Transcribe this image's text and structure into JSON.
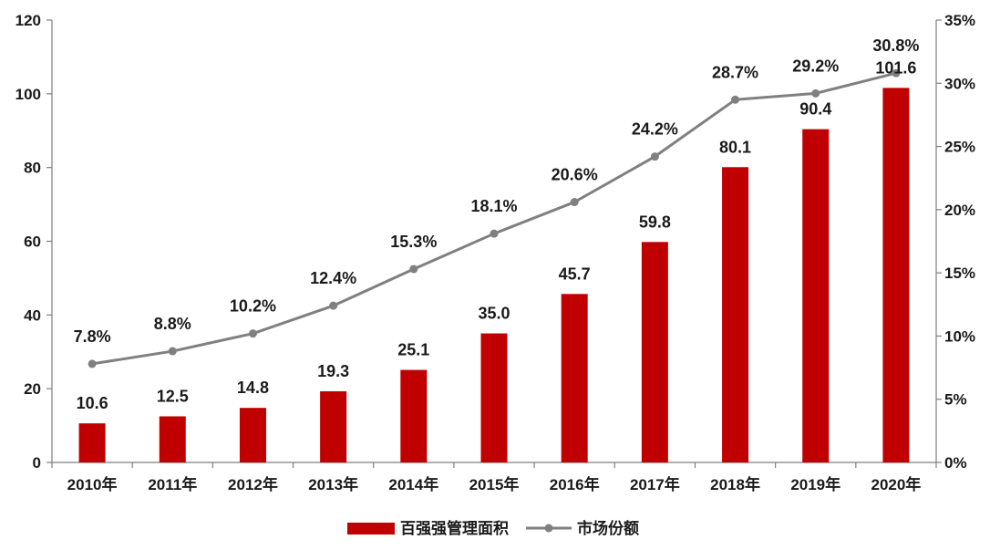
{
  "chart_data": {
    "type": "bar+line",
    "categories": [
      "2010年",
      "2011年",
      "2012年",
      "2013年",
      "2014年",
      "2015年",
      "2016年",
      "2017年",
      "2018年",
      "2019年",
      "2020年"
    ],
    "series": [
      {
        "name": "百强强管理面积",
        "type": "bar",
        "axis": "left",
        "color": "#c00000",
        "values": [
          10.6,
          12.5,
          14.8,
          19.3,
          25.1,
          35.0,
          45.7,
          59.8,
          80.1,
          90.4,
          101.6
        ],
        "labels": [
          "10.6",
          "12.5",
          "14.8",
          "19.3",
          "25.1",
          "35.0",
          "45.7",
          "59.8",
          "80.1",
          "90.4",
          "101.6"
        ]
      },
      {
        "name": "市场份额",
        "type": "line",
        "axis": "right",
        "color": "#808080",
        "values": [
          7.8,
          8.8,
          10.2,
          12.4,
          15.3,
          18.1,
          20.6,
          24.2,
          28.7,
          29.2,
          30.8
        ],
        "labels": [
          "7.8%",
          "8.8%",
          "10.2%",
          "12.4%",
          "15.3%",
          "18.1%",
          "20.6%",
          "24.2%",
          "28.7%",
          "29.2%",
          "30.8%"
        ]
      }
    ],
    "y_left": {
      "min": 0,
      "max": 120,
      "ticks": [
        0,
        20,
        40,
        60,
        80,
        100,
        120
      ],
      "tick_labels": [
        "0",
        "20",
        "40",
        "60",
        "80",
        "100",
        "120"
      ]
    },
    "y_right": {
      "min": 0,
      "max": 35,
      "ticks": [
        0,
        5,
        10,
        15,
        20,
        25,
        30,
        35
      ],
      "tick_labels": [
        "0%",
        "5%",
        "10%",
        "15%",
        "20%",
        "25%",
        "30%",
        "35%"
      ]
    },
    "grid": false,
    "legend_position": "bottom-center",
    "title": ""
  }
}
